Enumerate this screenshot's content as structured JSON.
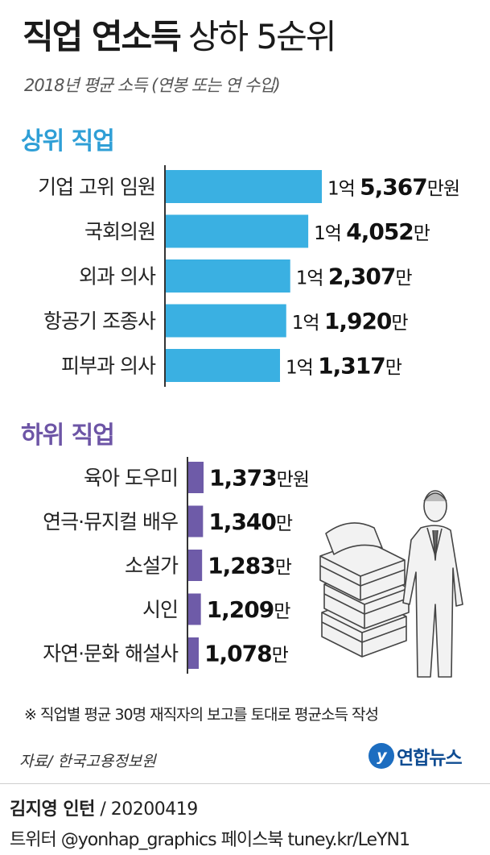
{
  "title_bold": "직업 연소득",
  "title_light": "상하 5순위",
  "subtitle": "2018년 평균 소득 (연봉 또는 연 수입)",
  "section_top": "상위 직업",
  "section_bottom": "하위 직업",
  "note": "※ 직업별 평균 30명 재직자의 보고를 토대로 평균소득 작성",
  "source": "자료/ 한국고용정보원",
  "brand": "연합뉴스",
  "credit_name": "김지영 인턴",
  "credit_date": "/ 20200419",
  "social": "트위터 @yonhap_graphics  페이스북 tuney.kr/LeYN1",
  "colors": {
    "top_bar": "#3ab0e2",
    "bottom_bar": "#6e5ba8",
    "top_heading": "#2f9fd6",
    "bottom_heading": "#6d55a6"
  },
  "chart_data": [
    {
      "type": "bar",
      "orientation": "horizontal",
      "unit": "만원",
      "categories": [
        "기업 고위 임원",
        "국회의원",
        "외과 의사",
        "항공기 조종사",
        "피부과 의사"
      ],
      "values": [
        15367,
        14052,
        12307,
        11920,
        11317
      ],
      "value_labels": [
        {
          "prefix": "1억 ",
          "number": "5,367",
          "unit": "만원"
        },
        {
          "prefix": "1억 ",
          "number": "4,052",
          "unit": "만"
        },
        {
          "prefix": "1억 ",
          "number": "2,307",
          "unit": "만"
        },
        {
          "prefix": "1억 ",
          "number": "1,920",
          "unit": "만"
        },
        {
          "prefix": "1억 ",
          "number": "1,317",
          "unit": "만"
        }
      ]
    },
    {
      "type": "bar",
      "orientation": "horizontal",
      "unit": "만원",
      "categories": [
        "육아 도우미",
        "연극·뮤지컬 배우",
        "소설가",
        "시인",
        "자연·문화 해설사"
      ],
      "values": [
        1373,
        1340,
        1283,
        1209,
        1078
      ],
      "value_labels": [
        {
          "prefix": "",
          "number": "1,373",
          "unit": "만원"
        },
        {
          "prefix": "",
          "number": "1,340",
          "unit": "만"
        },
        {
          "prefix": "",
          "number": "1,283",
          "unit": "만"
        },
        {
          "prefix": "",
          "number": "1,209",
          "unit": "만"
        },
        {
          "prefix": "",
          "number": "1,078",
          "unit": "만"
        }
      ]
    }
  ],
  "icons": {
    "illustration": "businessman-with-money-stacks-icon",
    "brand": "yonhap-logo-icon"
  }
}
